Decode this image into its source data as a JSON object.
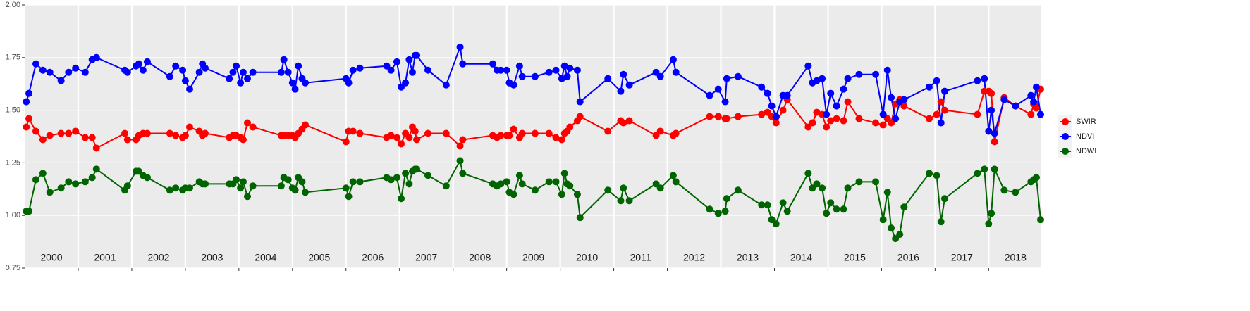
{
  "chart_data": {
    "type": "line",
    "x": [
      2000.03,
      2000.08,
      2000.21,
      2000.34,
      2000.47,
      2000.68,
      2000.82,
      2000.95,
      2001.13,
      2001.26,
      2001.34,
      2001.87,
      2001.92,
      2002.08,
      2002.13,
      2002.21,
      2002.29,
      2002.71,
      2002.82,
      2002.95,
      2003.0,
      2003.08,
      2003.26,
      2003.32,
      2003.37,
      2003.82,
      2003.89,
      2003.95,
      2004.03,
      2004.08,
      2004.16,
      2004.26,
      2004.79,
      2004.84,
      2004.92,
      2005.0,
      2005.05,
      2005.11,
      2005.18,
      2005.24,
      2006.0,
      2006.05,
      2006.13,
      2006.26,
      2006.76,
      2006.84,
      2006.95,
      2007.03,
      2007.11,
      2007.18,
      2007.24,
      2007.29,
      2007.32,
      2007.53,
      2007.87,
      2008.13,
      2008.18,
      2008.74,
      2008.82,
      2008.89,
      2009.0,
      2009.05,
      2009.13,
      2009.24,
      2009.29,
      2009.53,
      2009.79,
      2009.92,
      2010.03,
      2010.08,
      2010.13,
      2010.18,
      2010.32,
      2010.37,
      2010.89,
      2011.13,
      2011.18,
      2011.29,
      2011.79,
      2011.87,
      2012.11,
      2012.16,
      2012.79,
      2012.95,
      2013.08,
      2013.11,
      2013.32,
      2013.76,
      2013.87,
      2013.95,
      2014.03,
      2014.16,
      2014.24,
      2014.63,
      2014.71,
      2014.79,
      2014.89,
      2014.97,
      2015.05,
      2015.16,
      2015.29,
      2015.37,
      2015.58,
      2015.89,
      2016.03,
      2016.11,
      2016.18,
      2016.26,
      2016.34,
      2016.42,
      2016.89,
      2017.03,
      2017.11,
      2017.18,
      2017.79,
      2017.92,
      2018.0,
      2018.05,
      2018.11,
      2018.29,
      2018.5,
      2018.79,
      2018.84,
      2018.89,
      2018.97
    ],
    "series": [
      {
        "name": "SWIR",
        "color": "#ff0000",
        "values": [
          1.42,
          1.46,
          1.4,
          1.36,
          1.38,
          1.39,
          1.39,
          1.4,
          1.37,
          1.37,
          1.32,
          1.39,
          1.36,
          1.36,
          1.38,
          1.39,
          1.39,
          1.39,
          1.38,
          1.37,
          1.38,
          1.42,
          1.4,
          1.38,
          1.39,
          1.37,
          1.38,
          1.38,
          1.37,
          1.36,
          1.44,
          1.42,
          1.38,
          1.38,
          1.38,
          1.38,
          1.37,
          1.39,
          1.41,
          1.43,
          1.35,
          1.4,
          1.4,
          1.39,
          1.37,
          1.38,
          1.37,
          1.34,
          1.39,
          1.37,
          1.42,
          1.4,
          1.36,
          1.39,
          1.39,
          1.33,
          1.36,
          1.38,
          1.37,
          1.38,
          1.38,
          1.38,
          1.41,
          1.37,
          1.39,
          1.39,
          1.39,
          1.37,
          1.36,
          1.39,
          1.4,
          1.42,
          1.45,
          1.47,
          1.4,
          1.45,
          1.44,
          1.45,
          1.38,
          1.4,
          1.38,
          1.39,
          1.47,
          1.47,
          1.46,
          1.46,
          1.47,
          1.48,
          1.49,
          1.47,
          1.44,
          1.5,
          1.55,
          1.42,
          1.44,
          1.49,
          1.48,
          1.42,
          1.45,
          1.46,
          1.45,
          1.54,
          1.46,
          1.44,
          1.43,
          1.46,
          1.44,
          1.53,
          1.55,
          1.52,
          1.46,
          1.48,
          1.54,
          1.5,
          1.48,
          1.59,
          1.59,
          1.58,
          1.35,
          1.56,
          1.52,
          1.48,
          1.53,
          1.51,
          1.6
        ]
      },
      {
        "name": "NDVI",
        "color": "#0000ff",
        "values": [
          1.54,
          1.58,
          1.72,
          1.69,
          1.68,
          1.64,
          1.68,
          1.7,
          1.68,
          1.74,
          1.75,
          1.69,
          1.68,
          1.71,
          1.72,
          1.69,
          1.73,
          1.66,
          1.71,
          1.69,
          1.64,
          1.6,
          1.68,
          1.72,
          1.7,
          1.65,
          1.68,
          1.71,
          1.63,
          1.68,
          1.65,
          1.68,
          1.68,
          1.74,
          1.68,
          1.63,
          1.6,
          1.71,
          1.65,
          1.63,
          1.65,
          1.63,
          1.69,
          1.7,
          1.71,
          1.69,
          1.73,
          1.61,
          1.63,
          1.74,
          1.68,
          1.76,
          1.76,
          1.69,
          1.62,
          1.8,
          1.72,
          1.72,
          1.69,
          1.69,
          1.69,
          1.63,
          1.62,
          1.71,
          1.66,
          1.66,
          1.68,
          1.69,
          1.65,
          1.71,
          1.66,
          1.7,
          1.69,
          1.54,
          1.65,
          1.59,
          1.67,
          1.62,
          1.68,
          1.66,
          1.74,
          1.68,
          1.57,
          1.6,
          1.54,
          1.65,
          1.66,
          1.61,
          1.58,
          1.52,
          1.47,
          1.57,
          1.57,
          1.71,
          1.63,
          1.64,
          1.65,
          1.48,
          1.58,
          1.52,
          1.6,
          1.65,
          1.67,
          1.67,
          1.48,
          1.69,
          1.56,
          1.46,
          1.54,
          1.55,
          1.61,
          1.64,
          1.44,
          1.59,
          1.64,
          1.65,
          1.4,
          1.5,
          1.39,
          1.55,
          1.52,
          1.57,
          1.54,
          1.61,
          1.48
        ]
      },
      {
        "name": "NDWI",
        "color": "#006400",
        "values": [
          1.02,
          1.02,
          1.17,
          1.2,
          1.11,
          1.13,
          1.16,
          1.15,
          1.16,
          1.18,
          1.22,
          1.12,
          1.14,
          1.21,
          1.21,
          1.19,
          1.18,
          1.12,
          1.13,
          1.12,
          1.13,
          1.13,
          1.16,
          1.15,
          1.15,
          1.15,
          1.15,
          1.17,
          1.13,
          1.16,
          1.09,
          1.14,
          1.14,
          1.18,
          1.17,
          1.13,
          1.12,
          1.18,
          1.16,
          1.11,
          1.13,
          1.09,
          1.16,
          1.16,
          1.18,
          1.17,
          1.18,
          1.08,
          1.2,
          1.15,
          1.21,
          1.22,
          1.22,
          1.19,
          1.14,
          1.26,
          1.2,
          1.15,
          1.14,
          1.15,
          1.16,
          1.11,
          1.1,
          1.19,
          1.15,
          1.12,
          1.16,
          1.16,
          1.1,
          1.2,
          1.15,
          1.14,
          1.1,
          0.99,
          1.12,
          1.07,
          1.13,
          1.07,
          1.15,
          1.13,
          1.19,
          1.16,
          1.03,
          1.01,
          1.02,
          1.08,
          1.12,
          1.05,
          1.05,
          0.98,
          0.96,
          1.06,
          1.02,
          1.2,
          1.13,
          1.15,
          1.13,
          1.01,
          1.06,
          1.03,
          1.03,
          1.13,
          1.16,
          1.16,
          0.98,
          1.11,
          0.94,
          0.89,
          0.91,
          1.04,
          1.2,
          1.19,
          0.97,
          1.08,
          1.2,
          1.22,
          0.96,
          1.01,
          1.22,
          1.12,
          1.11,
          1.16,
          1.17,
          1.18,
          0.98
        ]
      }
    ],
    "xlim": [
      2000,
      2018.97
    ],
    "xticks": [
      2001,
      2002,
      2003,
      2004,
      2005,
      2006,
      2007,
      2008,
      2009,
      2010,
      2011,
      2012,
      2013,
      2014,
      2015,
      2016,
      2017,
      2018
    ],
    "year_labels": [
      {
        "value": 2000.5,
        "label": "2000"
      },
      {
        "value": 2001.5,
        "label": "2001"
      },
      {
        "value": 2002.5,
        "label": "2002"
      },
      {
        "value": 2003.5,
        "label": "2003"
      },
      {
        "value": 2004.5,
        "label": "2004"
      },
      {
        "value": 2005.5,
        "label": "2005"
      },
      {
        "value": 2006.5,
        "label": "2006"
      },
      {
        "value": 2007.5,
        "label": "2007"
      },
      {
        "value": 2008.5,
        "label": "2008"
      },
      {
        "value": 2009.5,
        "label": "2009"
      },
      {
        "value": 2010.5,
        "label": "2010"
      },
      {
        "value": 2011.5,
        "label": "2011"
      },
      {
        "value": 2012.5,
        "label": "2012"
      },
      {
        "value": 2013.5,
        "label": "2013"
      },
      {
        "value": 2014.5,
        "label": "2014"
      },
      {
        "value": 2015.5,
        "label": "2015"
      },
      {
        "value": 2016.5,
        "label": "2016"
      },
      {
        "value": 2017.5,
        "label": "2017"
      },
      {
        "value": 2018.5,
        "label": "2018"
      }
    ],
    "ylim": [
      0.75,
      2.0
    ],
    "yticks": [
      0.75,
      {
        "value": 1,
        "label": "1.00"
      },
      1.25,
      {
        "value": 1.5,
        "label": "1.50"
      },
      1.75,
      {
        "value": 2,
        "label": "2.00"
      }
    ],
    "grid": true,
    "legend": "right"
  }
}
